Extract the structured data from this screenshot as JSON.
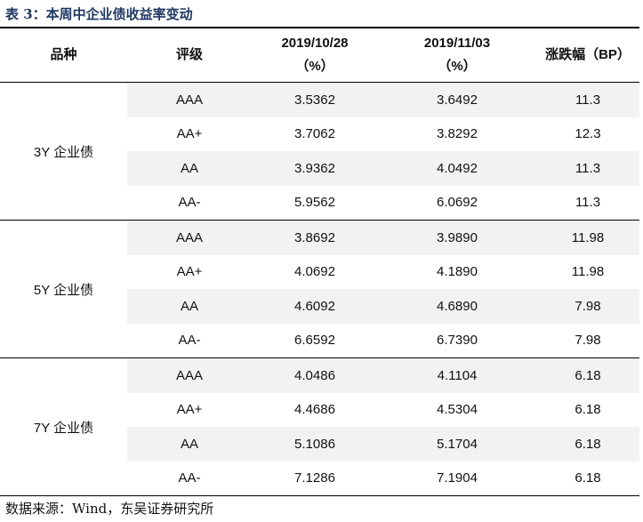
{
  "title": "表 3：本周中企业债收益率变动",
  "headers": {
    "variety": "品种",
    "grade": "评级",
    "date1": "2019/10/28",
    "date1_unit": "（%）",
    "date2": "2019/11/03",
    "date2_unit": "（%）",
    "change": "涨跌幅（BP）"
  },
  "groups": [
    {
      "name": "3Y 企业债",
      "rows": [
        {
          "grade": "AAA",
          "v1": "3.5362",
          "v2": "3.6492",
          "bp": "11.3"
        },
        {
          "grade": "AA+",
          "v1": "3.7062",
          "v2": "3.8292",
          "bp": "12.3"
        },
        {
          "grade": "AA",
          "v1": "3.9362",
          "v2": "4.0492",
          "bp": "11.3"
        },
        {
          "grade": "AA-",
          "v1": "5.9562",
          "v2": "6.0692",
          "bp": "11.3"
        }
      ]
    },
    {
      "name": "5Y 企业债",
      "rows": [
        {
          "grade": "AAA",
          "v1": "3.8692",
          "v2": "3.9890",
          "bp": "11.98"
        },
        {
          "grade": "AA+",
          "v1": "4.0692",
          "v2": "4.1890",
          "bp": "11.98"
        },
        {
          "grade": "AA",
          "v1": "4.6092",
          "v2": "4.6890",
          "bp": "7.98"
        },
        {
          "grade": "AA-",
          "v1": "6.6592",
          "v2": "6.7390",
          "bp": "7.98"
        }
      ]
    },
    {
      "name": "7Y 企业债",
      "rows": [
        {
          "grade": "AAA",
          "v1": "4.0486",
          "v2": "4.1104",
          "bp": "6.18"
        },
        {
          "grade": "AA+",
          "v1": "4.4686",
          "v2": "4.5304",
          "bp": "6.18"
        },
        {
          "grade": "AA",
          "v1": "5.1086",
          "v2": "5.1704",
          "bp": "6.18"
        },
        {
          "grade": "AA-",
          "v1": "7.1286",
          "v2": "7.1904",
          "bp": "6.18"
        }
      ]
    }
  ],
  "source": "数据来源：Wind，东吴证券研究所"
}
